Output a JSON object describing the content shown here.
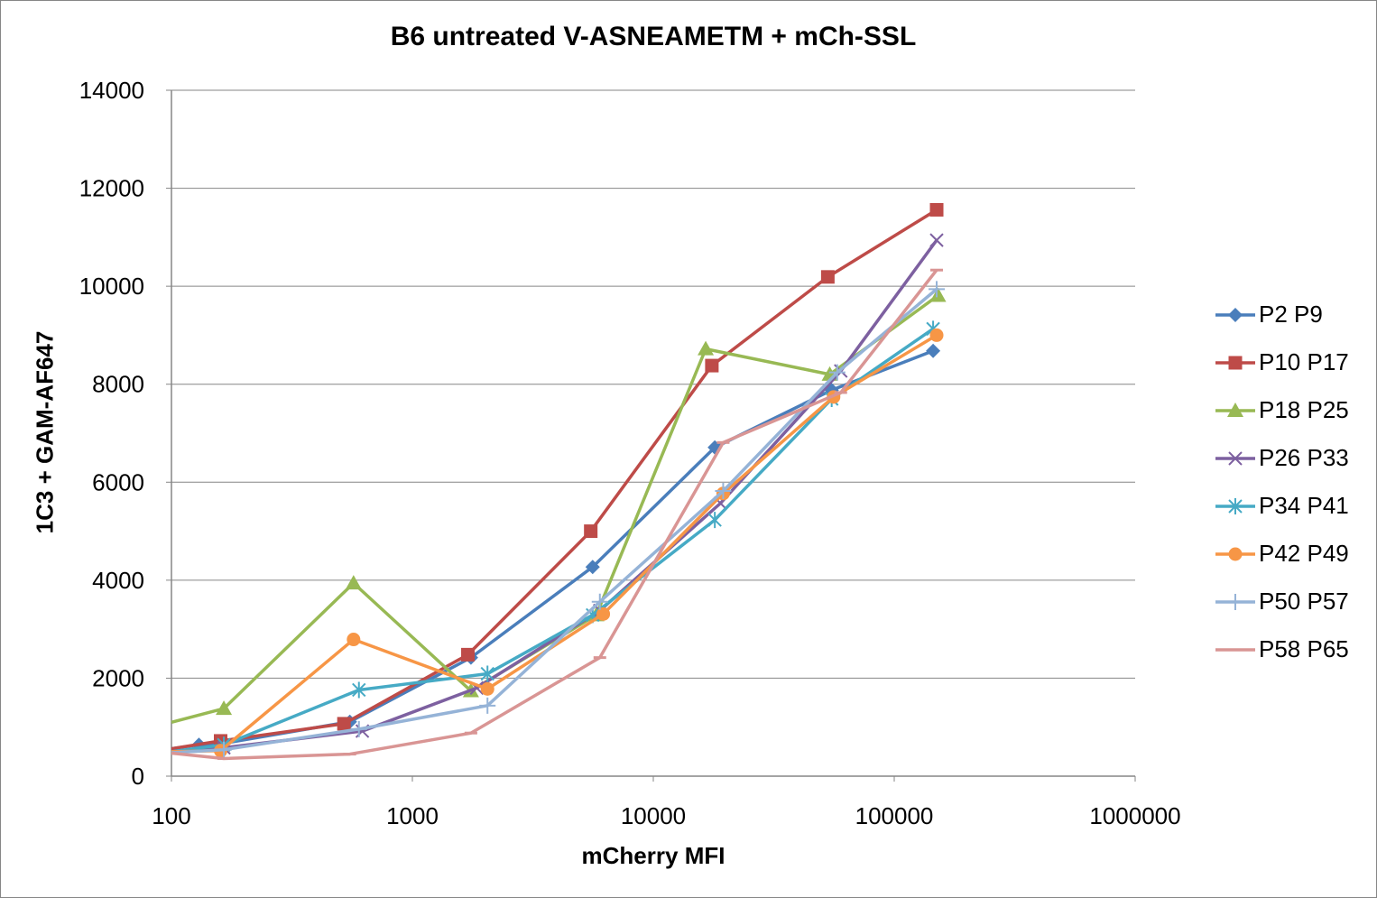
{
  "chart_data": {
    "type": "line",
    "title": "B6 untreated V-ASNEAMETM + mCh-SSL",
    "xlabel": "mCherry MFI",
    "ylabel": "1C3 + GAM-AF647",
    "x_scale": "log",
    "xlim": [
      100,
      1000000
    ],
    "ylim": [
      0,
      14000
    ],
    "x_ticks": [
      "100",
      "1000",
      "10000",
      "100000",
      "1000000"
    ],
    "y_ticks": [
      "0",
      "2000",
      "4000",
      "6000",
      "8000",
      "10000",
      "12000",
      "14000"
    ],
    "grid": "horizontal",
    "legend_position": "right",
    "series": [
      {
        "name": "P2 P9",
        "color": "#4a7ebb",
        "marker": "diamond",
        "x": [
          100,
          130,
          160,
          550,
          1750,
          5600,
          18000,
          55000,
          145000
        ],
        "y": [
          560,
          640,
          660,
          1110,
          2420,
          4270,
          6710,
          7880,
          8680
        ]
      },
      {
        "name": "P10 P17",
        "color": "#be4b48",
        "marker": "square",
        "x": [
          100,
          160,
          520,
          1700,
          5500,
          17500,
          53000,
          150000
        ],
        "y": [
          560,
          720,
          1070,
          2480,
          5000,
          8380,
          10190,
          11560
        ]
      },
      {
        "name": "P18 P25",
        "color": "#98b954",
        "marker": "triangle",
        "x": [
          100,
          165,
          570,
          1750,
          5800,
          16500,
          54000,
          152000
        ],
        "y": [
          1100,
          1380,
          3940,
          1740,
          3290,
          8720,
          8200,
          9810
        ]
      },
      {
        "name": "P26 P33",
        "color": "#7d60a0",
        "marker": "x",
        "x": [
          100,
          165,
          620,
          1850,
          6000,
          19000,
          60000,
          150000
        ],
        "y": [
          500,
          580,
          920,
          1800,
          3380,
          5570,
          8270,
          10940
        ]
      },
      {
        "name": "P34 P41",
        "color": "#46aac5",
        "marker": "asterisk",
        "x": [
          100,
          165,
          600,
          2050,
          5600,
          18000,
          55000,
          145000
        ],
        "y": [
          500,
          640,
          1760,
          2090,
          3290,
          5230,
          7700,
          9130
        ]
      },
      {
        "name": "P42 P49",
        "color": "#f79646",
        "marker": "circle",
        "x": [
          100,
          160,
          570,
          2050,
          6200,
          19500,
          56000,
          150000
        ],
        "y": [
          500,
          520,
          2790,
          1780,
          3310,
          5770,
          7740,
          9000
        ]
      },
      {
        "name": "P50 P57",
        "color": "#95b3d7",
        "marker": "plus",
        "x": [
          100,
          165,
          600,
          2050,
          6000,
          19500,
          58000,
          150000
        ],
        "y": [
          480,
          540,
          960,
          1440,
          3560,
          5820,
          8240,
          9940
        ]
      },
      {
        "name": "P58 P65",
        "color": "#d99594",
        "marker": "dash",
        "x": [
          100,
          165,
          550,
          1750,
          6000,
          19500,
          60000,
          150000
        ],
        "y": [
          470,
          360,
          450,
          880,
          2420,
          6810,
          7830,
          10330
        ]
      }
    ]
  }
}
